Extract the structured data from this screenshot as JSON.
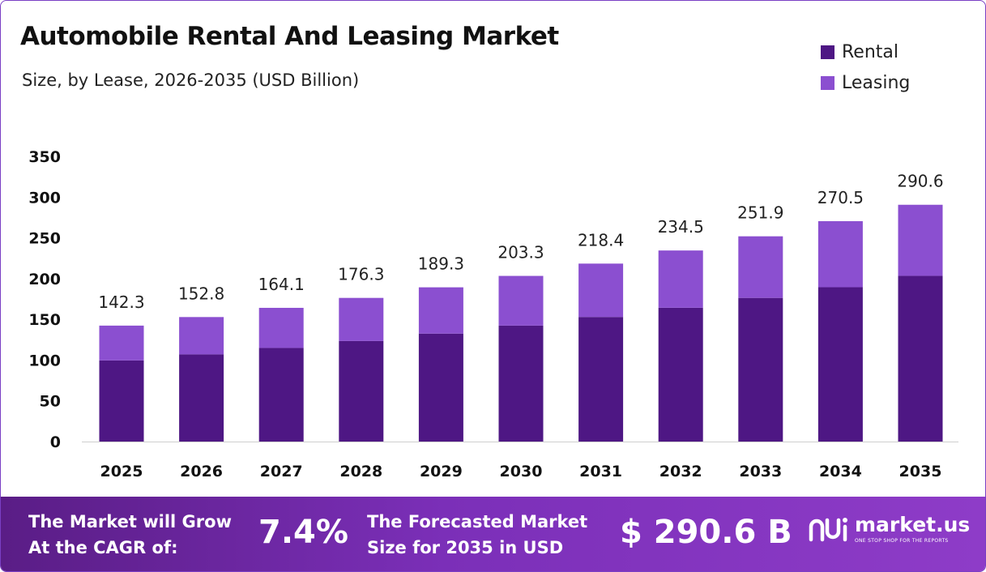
{
  "header": {
    "title": "Automobile Rental And Leasing Market",
    "subtitle": "Size, by Lease, 2026-2035 (USD Billion)"
  },
  "legend": [
    {
      "label": "Rental",
      "color": "#4e1784"
    },
    {
      "label": "Leasing",
      "color": "#8b4fd0"
    }
  ],
  "chart_data": {
    "type": "bar",
    "stacked": true,
    "categories": [
      "2025",
      "2026",
      "2027",
      "2028",
      "2029",
      "2030",
      "2031",
      "2032",
      "2033",
      "2034",
      "2035"
    ],
    "series": [
      {
        "name": "Rental",
        "color": "#4e1784",
        "values": [
          99.6,
          107.0,
          114.9,
          123.4,
          132.5,
          142.3,
          152.9,
          164.2,
          176.3,
          189.4,
          203.4
        ]
      },
      {
        "name": "Leasing",
        "color": "#8b4fd0",
        "values": [
          42.7,
          45.8,
          49.2,
          52.9,
          56.8,
          61.0,
          65.5,
          70.3,
          75.6,
          81.1,
          87.2
        ]
      }
    ],
    "totals": [
      "142.3",
      "152.8",
      "164.1",
      "176.3",
      "189.3",
      "203.3",
      "218.4",
      "234.5",
      "251.9",
      "270.5",
      "290.6"
    ],
    "yticks": [
      "0",
      "50",
      "100",
      "150",
      "200",
      "250",
      "300",
      "350"
    ],
    "ylim": [
      0,
      350
    ],
    "grid": false,
    "legend_position": "top-right"
  },
  "footer": {
    "cagr_label_line1": "The Market will Grow",
    "cagr_label_line2": "At the CAGR of:",
    "cagr_value": "7.4%",
    "forecast_label_line1": "The Forecasted Market",
    "forecast_label_line2": "Size for 2035 in USD",
    "forecast_value": "$ 290.6 B",
    "brand_name": "market.us",
    "brand_tagline": "ONE STOP SHOP FOR THE REPORTS",
    "brand_icon": "market-us-logo-icon"
  }
}
